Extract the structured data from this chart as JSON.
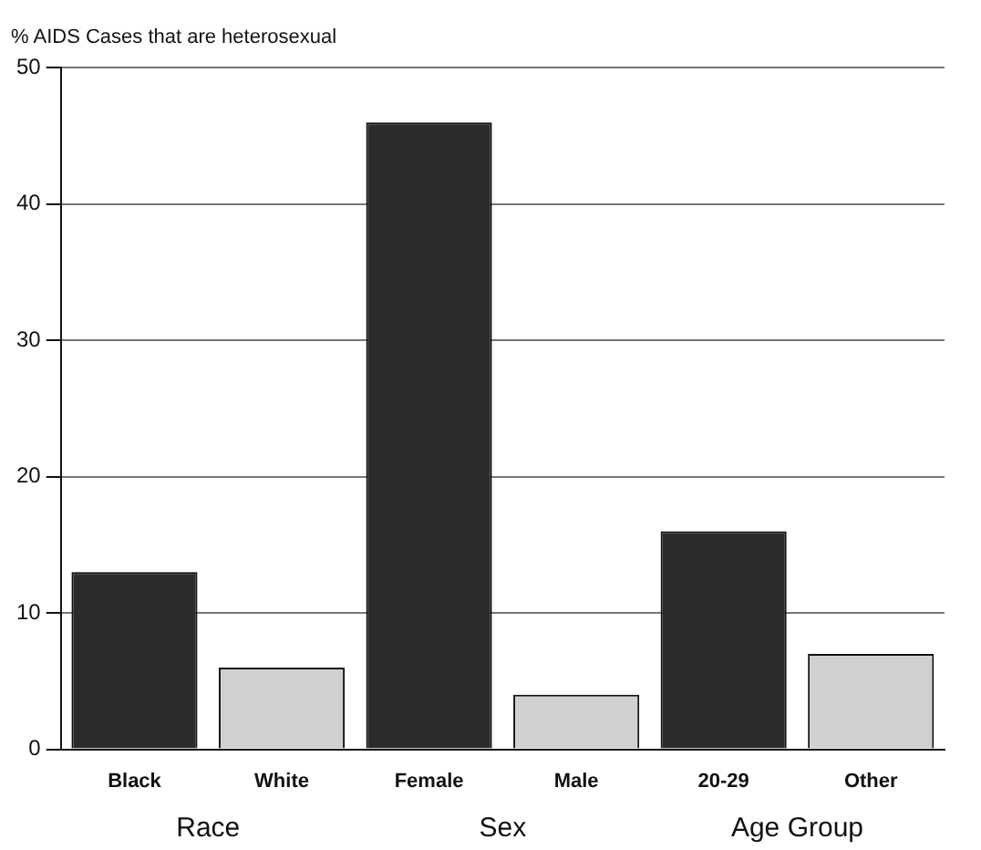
{
  "chart_data": {
    "type": "bar",
    "title": "% AIDS Cases that are heterosexual",
    "categories": [
      "Black",
      "White",
      "Female",
      "Male",
      "20-29",
      "Other"
    ],
    "values": [
      13,
      6,
      46,
      4,
      16,
      7
    ],
    "colors": [
      "#2b2b2b",
      "#d0d0d0",
      "#2b2b2b",
      "#d0d0d0",
      "#2b2b2b",
      "#d0d0d0"
    ],
    "ylim": [
      0,
      50
    ],
    "yticks": [
      0,
      10,
      20,
      30,
      40,
      50
    ],
    "grid": "y",
    "annotations": [
      "Race",
      "Sex",
      "Age Group"
    ]
  }
}
